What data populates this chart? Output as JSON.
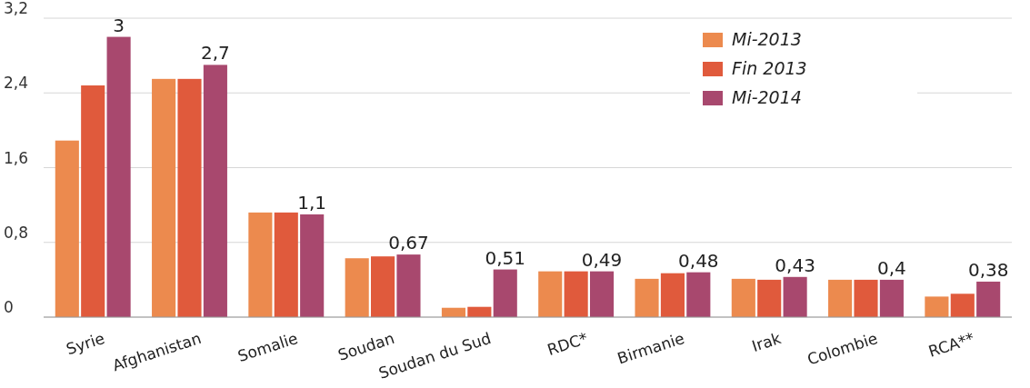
{
  "chart_data": {
    "type": "bar",
    "categories": [
      "Syrie",
      "Afghanistan",
      "Somalie",
      "Soudan",
      "Soudan du Sud",
      "RDC*",
      "Birmanie",
      "Irak",
      "Colombie",
      "RCA**"
    ],
    "series": [
      {
        "name": "Mi-2013",
        "color": "#ec8a4e",
        "values": [
          1.89,
          2.55,
          1.12,
          0.63,
          0.1,
          0.49,
          0.41,
          0.41,
          0.4,
          0.22
        ]
      },
      {
        "name": "Fin 2013",
        "color": "#e05a3c",
        "values": [
          2.48,
          2.55,
          1.12,
          0.65,
          0.11,
          0.49,
          0.47,
          0.4,
          0.4,
          0.25
        ]
      },
      {
        "name": "Mi-2014",
        "color": "#a8486e",
        "values": [
          3,
          2.7,
          1.1,
          0.67,
          0.51,
          0.49,
          0.48,
          0.43,
          0.4,
          0.38
        ],
        "value_labels": [
          "3",
          "2,7",
          "1,1",
          "0,67",
          "0,51",
          "0,49",
          "0,48",
          "0,43",
          "0,4",
          "0,38"
        ]
      }
    ],
    "ylim": [
      0,
      3.2
    ],
    "yticks": [
      {
        "value": 0,
        "label": "0"
      },
      {
        "value": 0.8,
        "label": "0,8"
      },
      {
        "value": 1.6,
        "label": "1,6"
      },
      {
        "value": 2.4,
        "label": "2,4"
      },
      {
        "value": 3.2,
        "label": "3,2"
      }
    ],
    "grid": "y",
    "legend": "top right"
  }
}
